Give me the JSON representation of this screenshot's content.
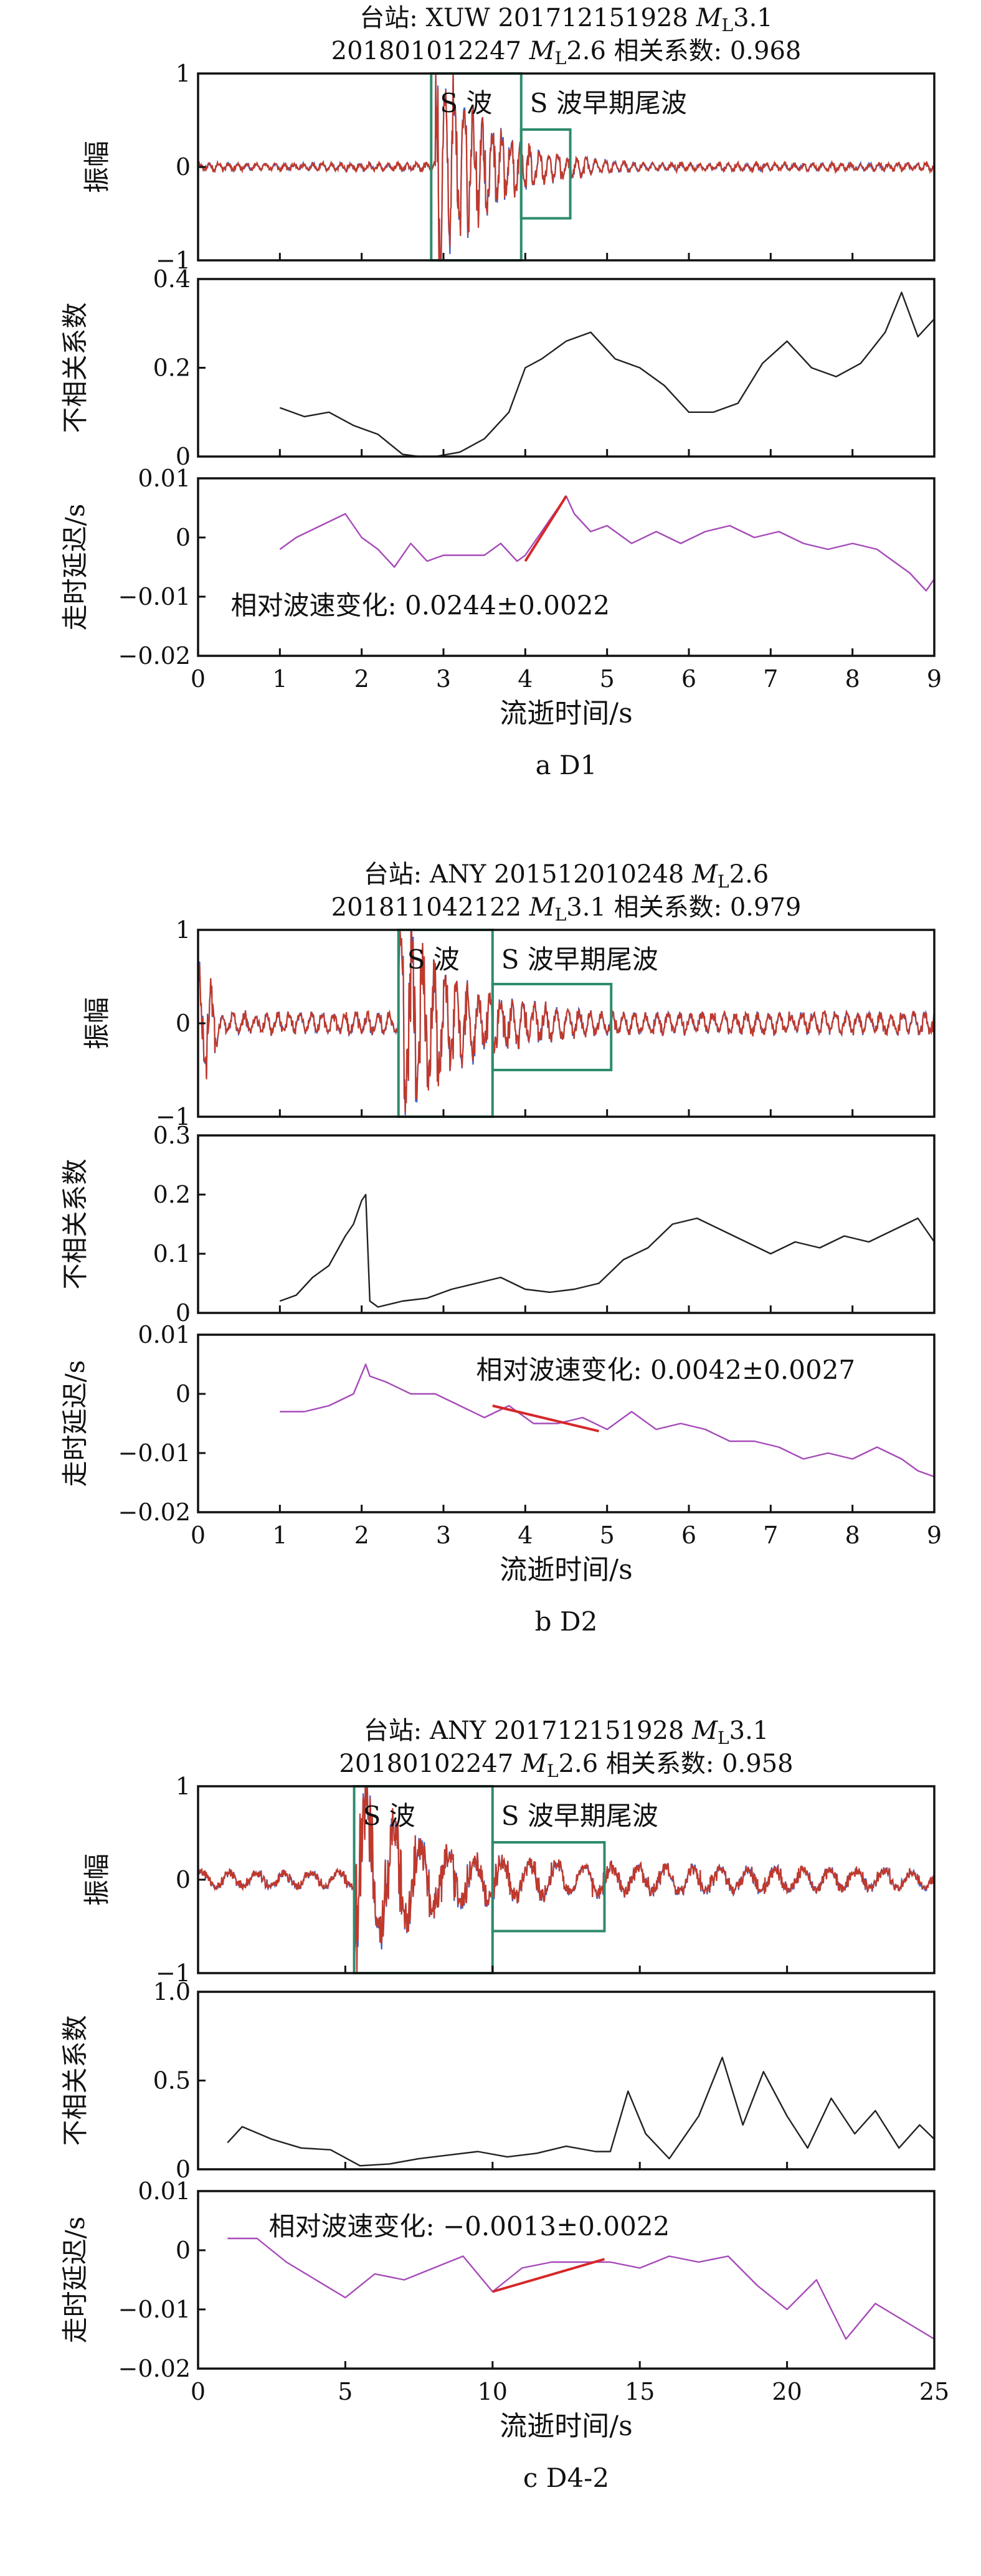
{
  "chart_data": [
    {
      "type": "line",
      "caption": "a D1",
      "title_lines": [
        {
          "pre": "台站: XUW 201712151928 ",
          "mag": "3.1",
          "post": ""
        },
        {
          "pre": "201801012247 ",
          "mag": "2.6",
          "post": " 相关系数: 0.968"
        }
      ],
      "xlim": [
        0,
        9
      ],
      "xticks": [
        0,
        1,
        2,
        3,
        4,
        5,
        6,
        7,
        8,
        9
      ],
      "xlabel": "流逝时间/s",
      "colors": {
        "trace_a": "#3a5fcd",
        "trace_b": "#c0392b",
        "decor": "#222222",
        "delay": "#a64ab8",
        "fit": "#d62728",
        "window": "#2e8b6e"
      },
      "amplitude": {
        "ylabel": "振幅",
        "ylim": [
          -1,
          1
        ],
        "yticks": [
          "1",
          "0",
          "-1"
        ],
        "ytick_values": [
          1,
          0,
          -1
        ],
        "seed": 11,
        "onset": 2.9,
        "noise": 0.04,
        "coda": 0.55,
        "decay": 0.9,
        "osc": 26,
        "windows": [
          {
            "label": "S 波",
            "x0": 2.85,
            "x1": 3.95,
            "y0": -1,
            "y1": 1
          },
          {
            "label": "S 波早期尾波",
            "x0": 3.95,
            "x1": 4.55,
            "y0": -0.55,
            "y1": 0.4
          }
        ]
      },
      "decorrelation": {
        "ylabel": "不相关系数",
        "ylim": [
          0,
          0.4
        ],
        "yticks": [
          "0.4",
          "0.2",
          "0"
        ],
        "ytick_values": [
          0.4,
          0.2,
          0
        ],
        "x": [
          1.0,
          1.3,
          1.6,
          1.9,
          2.2,
          2.5,
          2.7,
          2.9,
          3.2,
          3.5,
          3.8,
          4.0,
          4.2,
          4.5,
          4.8,
          5.1,
          5.4,
          5.7,
          6.0,
          6.3,
          6.6,
          6.9,
          7.2,
          7.5,
          7.8,
          8.1,
          8.4,
          8.6,
          8.8,
          9.0
        ],
        "y": [
          0.11,
          0.09,
          0.1,
          0.07,
          0.05,
          0.005,
          0.0,
          0.0,
          0.01,
          0.04,
          0.1,
          0.2,
          0.22,
          0.26,
          0.28,
          0.22,
          0.2,
          0.16,
          0.1,
          0.1,
          0.12,
          0.21,
          0.26,
          0.2,
          0.18,
          0.21,
          0.28,
          0.37,
          0.27,
          0.31
        ]
      },
      "delay": {
        "ylabel": "走时延迟/s",
        "ylim": [
          -0.02,
          0.01
        ],
        "yticks": [
          "0.01",
          "0",
          "-0.01",
          "-0.02"
        ],
        "ytick_values": [
          0.01,
          0,
          -0.01,
          -0.02
        ],
        "x": [
          1.0,
          1.2,
          1.5,
          1.8,
          2.0,
          2.2,
          2.4,
          2.6,
          2.8,
          3.0,
          3.2,
          3.5,
          3.7,
          3.9,
          4.0,
          4.2,
          4.4,
          4.5,
          4.6,
          4.8,
          5.0,
          5.3,
          5.6,
          5.9,
          6.2,
          6.5,
          6.8,
          7.1,
          7.4,
          7.7,
          8.0,
          8.3,
          8.5,
          8.7,
          8.9,
          9.0
        ],
        "y": [
          -0.002,
          0.0,
          0.002,
          0.004,
          0.0,
          -0.002,
          -0.005,
          -0.001,
          -0.004,
          -0.003,
          -0.003,
          -0.003,
          -0.001,
          -0.004,
          -0.003,
          0.001,
          0.005,
          0.007,
          0.004,
          0.001,
          0.002,
          -0.001,
          0.001,
          -0.001,
          0.001,
          0.002,
          0.0,
          0.001,
          -0.001,
          -0.002,
          -0.001,
          -0.002,
          -0.004,
          -0.006,
          -0.009,
          -0.007
        ],
        "fit": {
          "x": [
            4.0,
            4.5
          ],
          "y": [
            -0.004,
            0.007
          ]
        },
        "annotation": "相对波速变化: 0.0244±0.0022",
        "ann_x": 0.4,
        "ann_y": -0.0115
      }
    },
    {
      "type": "line",
      "caption": "b D2",
      "title_lines": [
        {
          "pre": "台站: ANY 201512010248 ",
          "mag": "2.6",
          "post": ""
        },
        {
          "pre": "201811042122 ",
          "mag": "3.1",
          "post": " 相关系数: 0.979"
        }
      ],
      "xlim": [
        0,
        9
      ],
      "xticks": [
        0,
        1,
        2,
        3,
        4,
        5,
        6,
        7,
        8,
        9
      ],
      "xlabel": "流逝时间/s",
      "colors": {
        "trace_a": "#3a5fcd",
        "trace_b": "#c0392b",
        "decor": "#222222",
        "delay": "#a64ab8",
        "fit": "#d62728",
        "window": "#2e8b6e"
      },
      "amplitude": {
        "ylabel": "振幅",
        "ylim": [
          -1,
          1
        ],
        "yticks": [
          "1",
          "0",
          "-1"
        ],
        "ytick_values": [
          1,
          0,
          -1
        ],
        "seed": 23,
        "onset": 2.45,
        "noise": 0.12,
        "coda": 0.6,
        "decay": 0.45,
        "osc": 22,
        "early": true,
        "windows": [
          {
            "label": "S 波",
            "x0": 2.45,
            "x1": 3.6,
            "y0": -1,
            "y1": 1
          },
          {
            "label": "S 波早期尾波",
            "x0": 3.6,
            "x1": 5.05,
            "y0": -0.5,
            "y1": 0.42
          }
        ]
      },
      "decorrelation": {
        "ylabel": "不相关系数",
        "ylim": [
          0,
          0.3
        ],
        "yticks": [
          "0.3",
          "0.2",
          "0.1",
          "0"
        ],
        "ytick_values": [
          0.3,
          0.2,
          0.1,
          0
        ],
        "x": [
          1.0,
          1.2,
          1.4,
          1.6,
          1.8,
          1.9,
          2.0,
          2.05,
          2.1,
          2.2,
          2.5,
          2.8,
          3.1,
          3.4,
          3.7,
          4.0,
          4.3,
          4.6,
          4.9,
          5.2,
          5.5,
          5.8,
          6.1,
          6.4,
          6.7,
          7.0,
          7.3,
          7.6,
          7.9,
          8.2,
          8.5,
          8.8,
          9.0
        ],
        "y": [
          0.02,
          0.03,
          0.06,
          0.08,
          0.13,
          0.15,
          0.19,
          0.2,
          0.02,
          0.01,
          0.02,
          0.025,
          0.04,
          0.05,
          0.06,
          0.04,
          0.035,
          0.04,
          0.05,
          0.09,
          0.11,
          0.15,
          0.16,
          0.14,
          0.12,
          0.1,
          0.12,
          0.11,
          0.13,
          0.12,
          0.14,
          0.16,
          0.12
        ]
      },
      "delay": {
        "ylabel": "走时延迟/s",
        "ylim": [
          -0.02,
          0.01
        ],
        "yticks": [
          "0.01",
          "0",
          "-0.01",
          "-0.02"
        ],
        "ytick_values": [
          0.01,
          0,
          -0.01,
          -0.02
        ],
        "x": [
          1.0,
          1.3,
          1.6,
          1.9,
          2.05,
          2.1,
          2.3,
          2.6,
          2.9,
          3.2,
          3.5,
          3.8,
          4.1,
          4.4,
          4.7,
          5.0,
          5.3,
          5.6,
          5.9,
          6.2,
          6.5,
          6.8,
          7.1,
          7.4,
          7.7,
          8.0,
          8.3,
          8.6,
          8.8,
          9.0
        ],
        "y": [
          -0.003,
          -0.003,
          -0.002,
          0.0,
          0.005,
          0.003,
          0.002,
          0.0,
          0.0,
          -0.002,
          -0.004,
          -0.002,
          -0.005,
          -0.005,
          -0.004,
          -0.006,
          -0.003,
          -0.006,
          -0.005,
          -0.006,
          -0.008,
          -0.008,
          -0.009,
          -0.011,
          -0.01,
          -0.011,
          -0.009,
          -0.011,
          -0.013,
          -0.014
        ],
        "fit": {
          "x": [
            3.6,
            4.9
          ],
          "y": [
            -0.002,
            -0.0063
          ]
        },
        "annotation": "相对波速变化: 0.0042±0.0027",
        "ann_x": 3.4,
        "ann_y": 0.004
      }
    },
    {
      "type": "line",
      "caption": "c D4-2",
      "title_lines": [
        {
          "pre": "台站: ANY 201712151928 ",
          "mag": "3.1",
          "post": ""
        },
        {
          "pre": "20180102247 ",
          "mag": "2.6",
          "post": " 相关系数: 0.958"
        }
      ],
      "xlim": [
        0,
        25
      ],
      "xticks": [
        0,
        5,
        10,
        15,
        20,
        25
      ],
      "xlabel": "流逝时间/s",
      "colors": {
        "trace_a": "#3a5fcd",
        "trace_b": "#c0392b",
        "decor": "#222222",
        "delay": "#a64ab8",
        "fit": "#d62728",
        "window": "#2e8b6e"
      },
      "amplitude": {
        "ylabel": "振幅",
        "ylim": [
          -1,
          1
        ],
        "yticks": [
          "1",
          "0",
          "-1"
        ],
        "ytick_values": [
          1,
          0,
          -1
        ],
        "seed": 37,
        "onset": 5.3,
        "noise": 0.1,
        "coda": 0.45,
        "decay": 0.12,
        "osc": 9,
        "windows": [
          {
            "label": "S 波",
            "x0": 5.3,
            "x1": 10.0,
            "y0": -1,
            "y1": 1
          },
          {
            "label": "S 波早期尾波",
            "x0": 10.0,
            "x1": 13.8,
            "y0": -0.55,
            "y1": 0.4
          }
        ]
      },
      "decorrelation": {
        "ylabel": "不相关系数",
        "ylim": [
          0,
          1.0
        ],
        "yticks": [
          "1.0",
          "0.5",
          "0"
        ],
        "ytick_values": [
          1.0,
          0.5,
          0
        ],
        "x": [
          1.0,
          1.5,
          2.5,
          3.5,
          4.5,
          5.5,
          6.5,
          7.5,
          8.5,
          9.5,
          10.5,
          11.5,
          12.5,
          13.5,
          14.0,
          14.6,
          15.2,
          16.0,
          17.0,
          17.8,
          18.5,
          19.2,
          20.0,
          20.7,
          21.5,
          22.3,
          23.0,
          23.8,
          24.5,
          25.0
        ],
        "y": [
          0.15,
          0.24,
          0.17,
          0.12,
          0.11,
          0.02,
          0.03,
          0.06,
          0.08,
          0.1,
          0.07,
          0.09,
          0.13,
          0.1,
          0.1,
          0.44,
          0.2,
          0.06,
          0.3,
          0.63,
          0.25,
          0.55,
          0.3,
          0.12,
          0.4,
          0.2,
          0.33,
          0.12,
          0.25,
          0.17
        ]
      },
      "delay": {
        "ylabel": "走时延迟/s",
        "ylim": [
          -0.02,
          0.01
        ],
        "yticks": [
          "0.01",
          "0",
          "-0.01",
          "-0.02"
        ],
        "ytick_values": [
          0.01,
          0,
          -0.01,
          -0.02
        ],
        "x": [
          1.0,
          2.0,
          3.0,
          4.0,
          5.0,
          6.0,
          7.0,
          8.0,
          9.0,
          10.0,
          11.0,
          12.0,
          13.0,
          14.0,
          15.0,
          16.0,
          17.0,
          18.0,
          19.0,
          20.0,
          21.0,
          22.0,
          23.0,
          24.0,
          25.0
        ],
        "y": [
          0.002,
          0.002,
          -0.002,
          -0.005,
          -0.008,
          -0.004,
          -0.005,
          -0.003,
          -0.001,
          -0.007,
          -0.003,
          -0.002,
          -0.002,
          -0.002,
          -0.003,
          -0.001,
          -0.002,
          -0.001,
          -0.006,
          -0.01,
          -0.005,
          -0.015,
          -0.009,
          -0.012,
          -0.015
        ],
        "fit": {
          "x": [
            10.0,
            13.8
          ],
          "y": [
            -0.007,
            -0.0015
          ]
        },
        "annotation": "相对波速变化: −0.0013±0.0022",
        "ann_x": 2.4,
        "ann_y": 0.004
      }
    }
  ]
}
